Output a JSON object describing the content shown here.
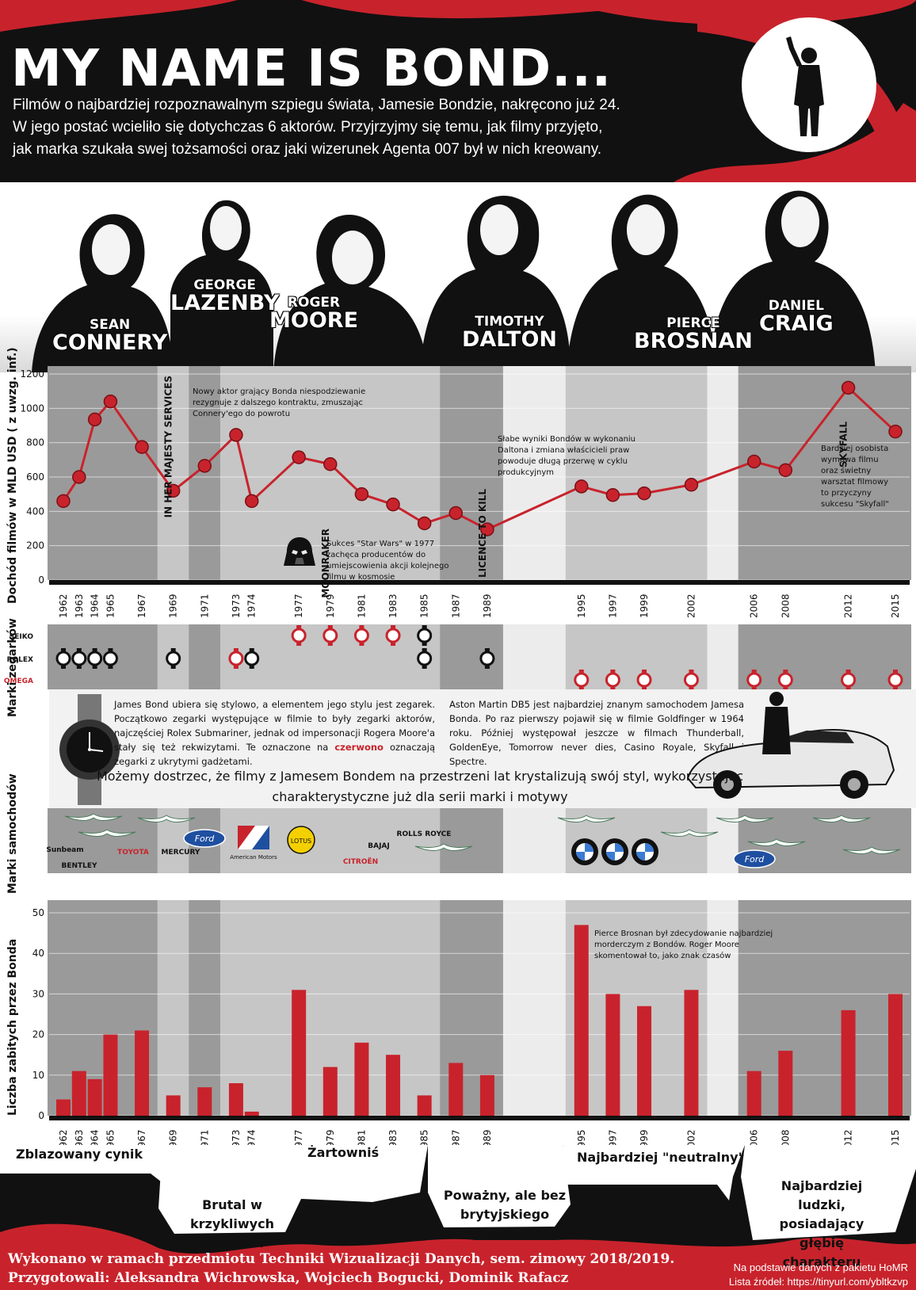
{
  "header": {
    "title": "MY NAME IS BOND...",
    "intro": [
      "Filmów o najbardziej rozpoznawalnym szpiegu świata, Jamesie Bondzie, nakręcono już 24.",
      "W jego postać wcieliło się dotychczas 6 aktorów. Przyjrzyjmy się temu, jak filmy przyjęto,",
      "jak marka szukała swej tożsamości oraz jaki wizerunek Agenta 007 był w nich kreowany."
    ]
  },
  "actors": [
    {
      "first": "SEAN",
      "last": "CONNERY"
    },
    {
      "first": "GEORGE",
      "last": "LAZENBY"
    },
    {
      "first": "ROGER",
      "last": "MOORE"
    },
    {
      "first": "TIMOTHY",
      "last": "DALTON"
    },
    {
      "first": "PIERCE",
      "last": "BROSNAN"
    },
    {
      "first": "DANIEL",
      "last": "CRAIG"
    }
  ],
  "colors": {
    "accent": "#c8232c",
    "dark": "#111111",
    "era_dark": "#9a9a9a",
    "era_light": "#c6c6c6",
    "gap": "#ececec"
  },
  "eras": [
    {
      "actor": "Connery",
      "from": 1962,
      "to": 1967
    },
    {
      "actor": "Lazenby",
      "from": 1969,
      "to": 1969
    },
    {
      "actor": "Connery",
      "from": 1971,
      "to": 1971
    },
    {
      "actor": "Moore",
      "from": 1973,
      "to": 1985
    },
    {
      "actor": "Dalton",
      "from": 1987,
      "to": 1989
    },
    {
      "actor": "Brosnan",
      "from": 1995,
      "to": 2002
    },
    {
      "actor": "Craig",
      "from": 2006,
      "to": 2015
    }
  ],
  "chart_data": [
    {
      "type": "line",
      "ylabel": "Dochód filmów w MLD USD ( z uwzg. inf.)",
      "ylim": [
        0,
        1200
      ],
      "yticks": [
        0,
        200,
        400,
        600,
        800,
        1000,
        1200
      ],
      "x": [
        1962,
        1963,
        1964,
        1965,
        1967,
        1969,
        1971,
        1973,
        1974,
        1977,
        1979,
        1981,
        1983,
        1985,
        1987,
        1989,
        1995,
        1997,
        1999,
        2002,
        2006,
        2008,
        2012,
        2015
      ],
      "values": [
        460,
        600,
        935,
        1040,
        775,
        520,
        665,
        845,
        460,
        715,
        675,
        500,
        440,
        330,
        390,
        295,
        545,
        495,
        505,
        555,
        690,
        640,
        1120,
        865
      ],
      "film_labels": [
        "IN HER MAJESTY SERVICES",
        "MOONRAKER",
        "LICENCE TO KILL",
        "SKYFALL"
      ],
      "annotations": [
        "Nowy aktor grający Bonda niespodziewanie rezygnuje z dalszego kontraktu, zmuszając Connery'ego do powrotu",
        "Sukces \"Star Wars\" w 1977 zachęca producentów do umiejscowienia akcji kolejnego filmu w kosmosie",
        "Słabe wyniki Bondów w wykonaniu Daltona i zmiana właścicieli praw powoduje długą przerwę w cyklu produkcyjnym",
        "Bardziej osobista wymowa filmu oraz świetny warsztat filmowy to przyczyny sukcesu \"Skyfall\""
      ]
    },
    {
      "type": "bar",
      "ylabel": "Liczba zabitych przez Bonda",
      "ylim": [
        0,
        50
      ],
      "yticks": [
        0,
        10,
        20,
        30,
        40,
        50
      ],
      "x": [
        1962,
        1963,
        1964,
        1965,
        1967,
        1969,
        1971,
        1973,
        1974,
        1977,
        1979,
        1981,
        1983,
        1985,
        1987,
        1989,
        1995,
        1997,
        1999,
        2002,
        2006,
        2008,
        2012,
        2015
      ],
      "values": [
        4,
        11,
        9,
        20,
        21,
        5,
        7,
        8,
        1,
        31,
        12,
        18,
        15,
        5,
        13,
        10,
        47,
        30,
        27,
        31,
        11,
        16,
        26,
        30
      ],
      "annotations": [
        "Pierce Brosnan był zdecydowanie najbardziej morderczym z Bondów. Roger Moore skomentował to, jako znak czasów"
      ]
    }
  ],
  "watches": {
    "title": "Marki zegarków",
    "brands": [
      "SEIKO",
      "ROLEX",
      "OMEGA"
    ],
    "entries": [
      {
        "year": 1962,
        "brand": "ROLEX",
        "red": false
      },
      {
        "year": 1963,
        "brand": "ROLEX",
        "red": false
      },
      {
        "year": 1964,
        "brand": "ROLEX",
        "red": false
      },
      {
        "year": 1965,
        "brand": "ROLEX",
        "red": false
      },
      {
        "year": 1969,
        "brand": "ROLEX",
        "red": false
      },
      {
        "year": 1973,
        "brand": "ROLEX",
        "red": true
      },
      {
        "year": 1974,
        "brand": "ROLEX",
        "red": false
      },
      {
        "year": 1977,
        "brand": "SEIKO",
        "red": true
      },
      {
        "year": 1979,
        "brand": "SEIKO",
        "red": true
      },
      {
        "year": 1981,
        "brand": "SEIKO",
        "red": true
      },
      {
        "year": 1983,
        "brand": "SEIKO",
        "red": true
      },
      {
        "year": 1985,
        "brand": "SEIKO",
        "red": false
      },
      {
        "year": 1985,
        "brand": "ROLEX",
        "red": false
      },
      {
        "year": 1989,
        "brand": "ROLEX",
        "red": false
      },
      {
        "year": 1995,
        "brand": "OMEGA",
        "red": true
      },
      {
        "year": 1997,
        "brand": "OMEGA",
        "red": true
      },
      {
        "year": 1999,
        "brand": "OMEGA",
        "red": true
      },
      {
        "year": 2002,
        "brand": "OMEGA",
        "red": true
      },
      {
        "year": 2006,
        "brand": "OMEGA",
        "red": true
      },
      {
        "year": 2008,
        "brand": "OMEGA",
        "red": true
      },
      {
        "year": 2012,
        "brand": "OMEGA",
        "red": true
      },
      {
        "year": 2015,
        "brand": "OMEGA",
        "red": true
      }
    ]
  },
  "info": {
    "watch_text_a": "James Bond ubiera się stylowo, a elementem jego stylu jest zegarek. Początkowo zegarki występujące w filmie to były zegarki aktorów, najczęściej Rolex Submariner, jednak od impersonacji Rogera Moore'a stały się też rekwizytami. Te oznaczone na",
    "watch_text_red": "czerwono",
    "watch_text_b": "oznaczają zegarki z ukrytymi gadżetami.",
    "car_text": "Aston Martin DB5 jest najbardziej znanym samochodem Jamesa Bonda. Po raz pierwszy pojawił się w filmie Goldfinger w 1964 roku. Później występował jeszcze w filmach Thunderball, GoldenEye, Tomorrow never dies, Casino Royale, Skyfall i Spectre.",
    "main": "Możemy dostrzec, że filmy z Jamesem Bondem na przestrzeni lat krystalizują swój styl, wykorzystując charakterystyczne już dla serii marki i motywy"
  },
  "cars": {
    "title": "Marki samochodów",
    "logos": [
      "Sunbeam",
      "BENTLEY",
      "TOYOTA",
      "MERCURY",
      "Ford",
      "American Motors",
      "LOTUS",
      "CITROËN",
      "BAJAJ",
      "ROLLS ROYCE",
      "BMW",
      "Ford"
    ]
  },
  "bond_types": [
    {
      "label": "Zblazowany cynik"
    },
    {
      "label": "Brutal w krzykliwych ciuchach"
    },
    {
      "label": "Żartowniś"
    },
    {
      "label": "Poważny, ale bez brytyjskiego \"uroku\""
    },
    {
      "label": "Najbardziej \"neutralny\""
    },
    {
      "label": "Najbardziej ludzki, posiadający głębię charakteru"
    }
  ],
  "footer": {
    "credits_line1": "Wykonano w ramach przedmiotu Techniki Wizualizacji Danych, sem. zimowy 2018/2019.",
    "credits_line2": "Przygotowali: Aleksandra Wichrowska, Wojciech Bogucki, Dominik Rafacz",
    "source_line1": "Na podstawie danych z pakietu HoMR",
    "source_line2": "Lista źródeł: https://tinyurl.com/ybltkzvp"
  }
}
